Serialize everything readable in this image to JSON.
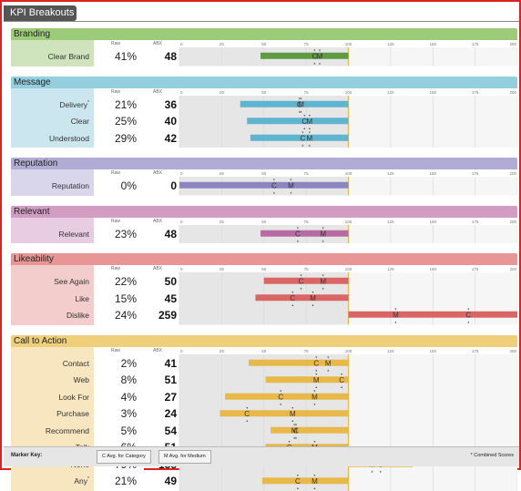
{
  "title": "KPI Breakouts",
  "col_headers": {
    "raw": "Raw",
    "abx": "ABX"
  },
  "scale_ticks": [
    0,
    25,
    50,
    75,
    100,
    125,
    150,
    175,
    200
  ],
  "footer": {
    "marker_key_label": "Marker Key:",
    "category_key": "C Avg. for Category",
    "medium_key": "M Avg. for Medium",
    "footnote": "* Combined Scores"
  },
  "chart_data": {
    "type": "bar",
    "baseline": 100,
    "xlim": [
      0,
      200
    ],
    "sections": [
      {
        "name": "Branding",
        "color": "#5f9b44",
        "header_color": "#9ccb79",
        "body_color": "#cfe3bd",
        "rows": [
          {
            "label": "Clear Brand",
            "raw": "41%",
            "abx": 48,
            "c": 80,
            "m": 83
          }
        ]
      },
      {
        "name": "Message",
        "color": "#5fb4cf",
        "header_color": "#94cfe0",
        "body_color": "#cbe6ee",
        "rows": [
          {
            "label": "Delivery",
            "star": true,
            "raw": "21%",
            "abx": 36,
            "c": 71,
            "m": 72
          },
          {
            "label": "Clear",
            "raw": "25%",
            "abx": 40,
            "c": 74,
            "m": 77
          },
          {
            "label": "Understood",
            "raw": "29%",
            "abx": 42,
            "c": 73,
            "m": 77
          }
        ]
      },
      {
        "name": "Reputation",
        "color": "#8b85c1",
        "header_color": "#b0acd6",
        "body_color": "#d9d6eb",
        "rows": [
          {
            "label": "Reputation",
            "raw": "0%",
            "abx": 0,
            "c": 56,
            "m": 66
          }
        ]
      },
      {
        "name": "Relevant",
        "color": "#b86aa3",
        "header_color": "#d29cc3",
        "body_color": "#e8cce1",
        "rows": [
          {
            "label": "Relevant",
            "raw": "23%",
            "abx": 48,
            "c": 70,
            "m": 85
          }
        ]
      },
      {
        "name": "Likeability",
        "color": "#d96665",
        "header_color": "#e89695",
        "body_color": "#f2cdcc",
        "rows": [
          {
            "label": "See Again",
            "raw": "22%",
            "abx": 50,
            "c": 72,
            "m": 85
          },
          {
            "label": "Like",
            "raw": "15%",
            "abx": 45,
            "c": 67,
            "m": 79
          },
          {
            "label": "Dislike",
            "raw": "24%",
            "abx": 259,
            "c": 171,
            "m": 128
          }
        ]
      },
      {
        "name": "Call to Action",
        "color": "#e8b848",
        "header_color": "#f0cf7a",
        "body_color": "#f7e6bf",
        "rows": [
          {
            "label": "Contact",
            "raw": "2%",
            "abx": 41,
            "c": 81,
            "m": 88
          },
          {
            "label": "Web",
            "raw": "8%",
            "abx": 51,
            "c": 96,
            "m": 81
          },
          {
            "label": "Look For",
            "raw": "4%",
            "abx": 27,
            "c": 60,
            "m": 80
          },
          {
            "label": "Purchase",
            "raw": "3%",
            "abx": 24,
            "c": 40,
            "m": 67
          },
          {
            "label": "Recommend",
            "raw": "5%",
            "abx": 54,
            "c": 69,
            "m": 68
          },
          {
            "label": "Talk",
            "raw": "6%",
            "abx": 51,
            "c": 65,
            "m": 80
          },
          {
            "label": "None",
            "raw": "79%",
            "abx": 138,
            "c": 119,
            "m": 114
          },
          {
            "label": "Any",
            "star": true,
            "raw": "21%",
            "abx": 49,
            "c": 70,
            "m": 80
          }
        ]
      }
    ]
  }
}
